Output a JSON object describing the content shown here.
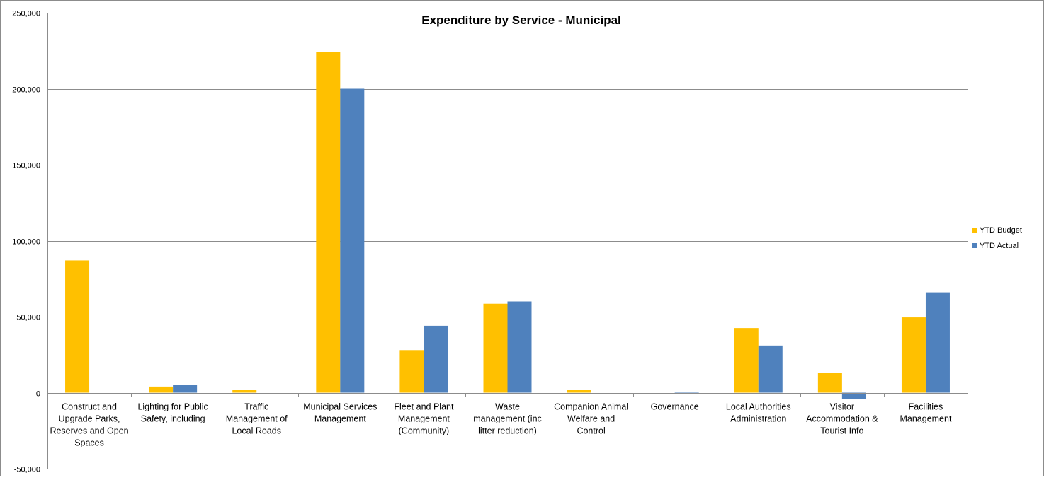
{
  "chart_data": {
    "type": "bar",
    "title": "Expenditure by Service - Municipal",
    "xlabel": "",
    "ylabel": "",
    "ylim": [
      -50000,
      250000
    ],
    "yticks": [
      -50000,
      0,
      50000,
      100000,
      150000,
      200000,
      250000
    ],
    "ytick_labels": [
      "-50,000",
      "0",
      "50,000",
      "100,000",
      "150,000",
      "200,000",
      "250,000"
    ],
    "grid": true,
    "legend_position": "right",
    "categories": [
      [
        "Construct and",
        "Upgrade Parks,",
        "Reserves and Open",
        "Spaces"
      ],
      [
        "Lighting for Public",
        "Safety, including"
      ],
      [
        "Traffic",
        "Management of",
        "Local Roads"
      ],
      [
        "Municipal Services",
        "Management"
      ],
      [
        "Fleet and Plant",
        "Management",
        "(Community)"
      ],
      [
        "Waste",
        "management (inc",
        "litter reduction)"
      ],
      [
        "Companion Animal",
        "Welfare and",
        "Control"
      ],
      [
        "Governance"
      ],
      [
        "Local Authorities",
        "Administration"
      ],
      [
        "Visitor",
        "Accommodation &",
        "Tourist Info"
      ],
      [
        "Facilities",
        "Management"
      ]
    ],
    "series": [
      {
        "name": "YTD Budget",
        "color": "#FFC000",
        "values": [
          87000,
          4000,
          2000,
          224000,
          28000,
          58500,
          2000,
          0,
          42500,
          13000,
          49500
        ]
      },
      {
        "name": "YTD Actual",
        "color": "#4F81BD",
        "values": [
          0,
          5000,
          0,
          200000,
          44000,
          60000,
          0,
          500,
          31000,
          -4000,
          66000
        ]
      }
    ]
  }
}
